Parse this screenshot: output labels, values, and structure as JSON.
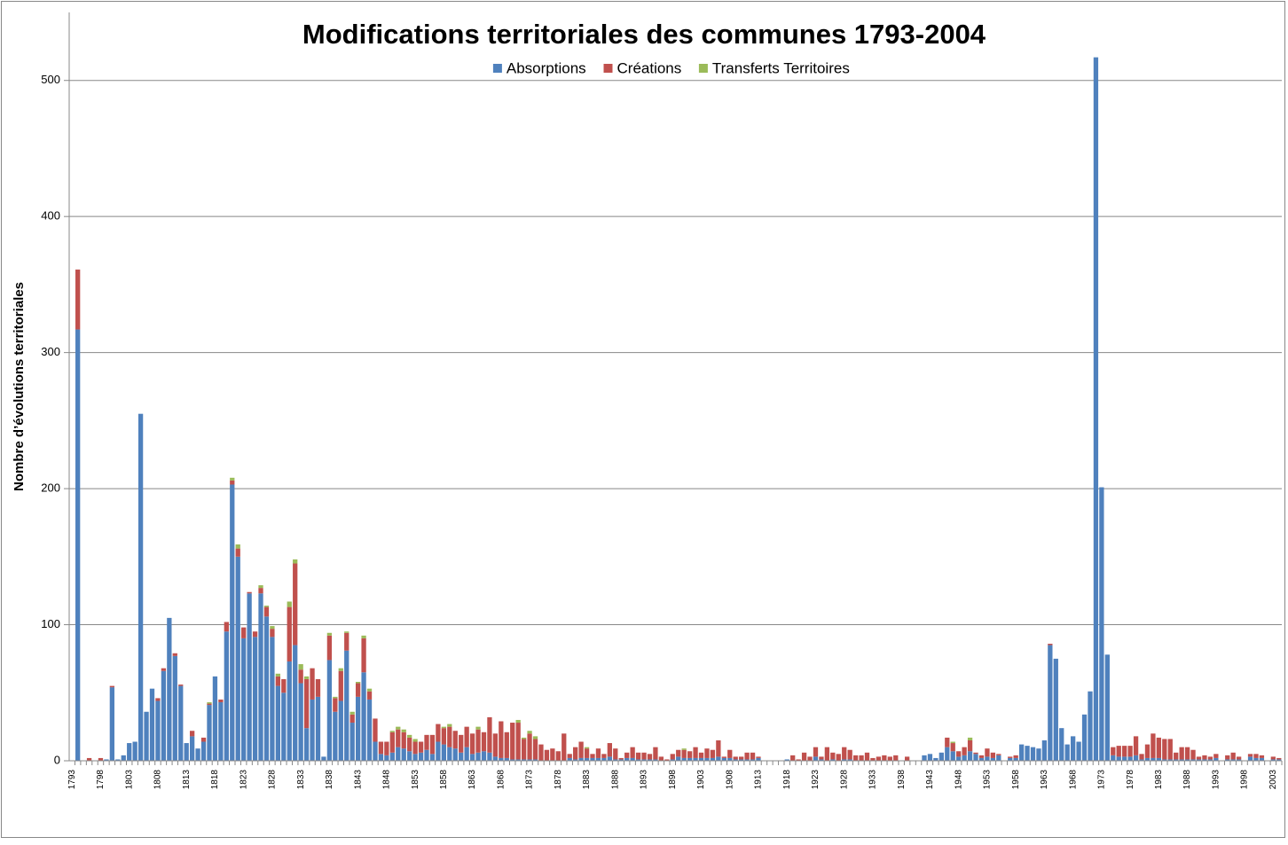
{
  "chart_data": {
    "type": "stacked_bar",
    "title": "Modifications territoriales des communes 1793-2004",
    "y_label": "Nombre d’évolutions territoriales",
    "categories": [
      "1793",
      null,
      null,
      null,
      null,
      "1798",
      null,
      null,
      null,
      null,
      "1803",
      null,
      null,
      null,
      null,
      "1808",
      null,
      null,
      null,
      null,
      "1813",
      null,
      null,
      null,
      null,
      "1818",
      null,
      null,
      null,
      null,
      "1823",
      null,
      null,
      null,
      null,
      "1828",
      null,
      null,
      null,
      null,
      "1833",
      null,
      null,
      null,
      null,
      "1838",
      null,
      null,
      null,
      null,
      "1843",
      null,
      null,
      null,
      null,
      "1848",
      null,
      null,
      null,
      null,
      "1853",
      null,
      null,
      null,
      null,
      "1858",
      null,
      null,
      null,
      null,
      "1863",
      null,
      null,
      null,
      null,
      "1868",
      null,
      null,
      null,
      null,
      "1873",
      null,
      null,
      null,
      null,
      "1878",
      null,
      null,
      null,
      null,
      "1883",
      null,
      null,
      null,
      null,
      "1888",
      null,
      null,
      null,
      null,
      "1893",
      null,
      null,
      null,
      null,
      "1898",
      null,
      null,
      null,
      null,
      "1903",
      null,
      null,
      null,
      null,
      "1908",
      null,
      null,
      null,
      null,
      "1913",
      null,
      null,
      null,
      null,
      "1918",
      null,
      null,
      null,
      null,
      "1923",
      null,
      null,
      null,
      null,
      "1928",
      null,
      null,
      null,
      null,
      "1933",
      null,
      null,
      null,
      null,
      "1938",
      null,
      null,
      null,
      null,
      "1943",
      null,
      null,
      null,
      null,
      "1948",
      null,
      null,
      null,
      null,
      "1953",
      null,
      null,
      null,
      null,
      "1958",
      null,
      null,
      null,
      null,
      "1963",
      null,
      null,
      null,
      null,
      "1968",
      null,
      null,
      null,
      null,
      "1973",
      null,
      null,
      null,
      null,
      "1978",
      null,
      null,
      null,
      null,
      "1983",
      null,
      null,
      null,
      null,
      "1988",
      null,
      null,
      null,
      null,
      "1993",
      null,
      null,
      null,
      null,
      "1998",
      null,
      null,
      null,
      null,
      "2003",
      null
    ],
    "series": [
      {
        "name": "Absorptions",
        "color": "#4f81bd",
        "values": [
          0,
          317,
          0,
          0,
          0,
          0,
          1,
          54,
          1,
          4,
          13,
          14,
          255,
          36,
          53,
          44,
          66,
          105,
          77,
          55,
          13,
          18,
          9,
          14,
          41,
          62,
          43,
          95,
          203,
          150,
          90,
          123,
          91,
          123,
          106,
          91,
          55,
          50,
          73,
          85,
          57,
          24,
          45,
          47,
          3,
          74,
          36,
          44,
          81,
          28,
          47,
          65,
          45,
          14,
          5,
          4,
          6,
          10,
          9,
          7,
          5,
          6,
          8,
          5,
          14,
          12,
          10,
          9,
          6,
          10,
          5,
          6,
          7,
          6,
          3,
          2,
          2,
          1,
          1,
          1,
          1,
          1,
          0,
          0,
          0,
          0,
          0,
          2,
          1,
          2,
          2,
          2,
          2,
          2,
          3,
          1,
          1,
          2,
          2,
          1,
          1,
          1,
          1,
          0,
          0,
          1,
          3,
          2,
          2,
          2,
          2,
          2,
          2,
          3,
          2,
          2,
          1,
          1,
          1,
          1,
          2,
          0,
          0,
          0,
          0,
          1,
          0,
          0,
          0,
          0,
          3,
          1,
          0,
          1,
          0,
          1,
          1,
          0,
          0,
          0,
          0,
          0,
          0,
          0,
          0,
          0,
          0,
          0,
          0,
          4,
          5,
          2,
          6,
          10,
          7,
          3,
          4,
          7,
          5,
          2,
          3,
          2,
          4,
          0,
          2,
          2,
          12,
          11,
          10,
          9,
          15,
          85,
          75,
          24,
          12,
          18,
          14,
          34,
          51,
          517,
          201,
          78,
          4,
          3,
          3,
          3,
          4,
          1,
          2,
          2,
          2,
          1,
          1,
          1,
          1,
          1,
          1,
          1,
          1,
          1,
          2,
          0,
          1,
          1,
          1,
          0,
          3,
          2,
          2,
          0,
          1,
          1
        ]
      },
      {
        "name": "Créations",
        "color": "#c0504d",
        "values": [
          0,
          44,
          0,
          2,
          0,
          2,
          0,
          1,
          0,
          0,
          0,
          0,
          0,
          0,
          0,
          2,
          2,
          0,
          2,
          1,
          0,
          4,
          0,
          3,
          1,
          0,
          2,
          7,
          3,
          6,
          8,
          1,
          4,
          4,
          7,
          6,
          7,
          10,
          40,
          60,
          10,
          36,
          23,
          13,
          0,
          18,
          10,
          22,
          13,
          6,
          10,
          25,
          6,
          17,
          9,
          10,
          15,
          13,
          12,
          10,
          9,
          8,
          11,
          14,
          13,
          12,
          15,
          13,
          13,
          15,
          15,
          17,
          14,
          26,
          17,
          27,
          19,
          27,
          27,
          15,
          19,
          15,
          12,
          8,
          9,
          7,
          20,
          3,
          9,
          12,
          7,
          3,
          7,
          3,
          10,
          8,
          1,
          4,
          8,
          5,
          5,
          4,
          9,
          3,
          1,
          4,
          5,
          6,
          5,
          8,
          4,
          7,
          6,
          12,
          1,
          6,
          2,
          2,
          5,
          5,
          1,
          0,
          0,
          0,
          0,
          0,
          4,
          1,
          6,
          3,
          7,
          2,
          10,
          5,
          5,
          9,
          7,
          4,
          4,
          6,
          2,
          3,
          4,
          3,
          4,
          0,
          3,
          0,
          0,
          0,
          0,
          0,
          0,
          7,
          6,
          4,
          6,
          8,
          1,
          2,
          6,
          4,
          1,
          0,
          1,
          2,
          0,
          0,
          0,
          0,
          0,
          1,
          0,
          0,
          0,
          0,
          0,
          0,
          0,
          0,
          0,
          0,
          6,
          8,
          8,
          8,
          14,
          4,
          10,
          18,
          15,
          15,
          15,
          5,
          9,
          9,
          7,
          2,
          3,
          2,
          3,
          0,
          3,
          5,
          2,
          0,
          2,
          3,
          2,
          0,
          2,
          1
        ]
      },
      {
        "name": "Transferts Territoires",
        "color": "#9bbb59",
        "values": [
          0,
          0,
          0,
          0,
          0,
          0,
          0,
          0,
          0,
          0,
          0,
          0,
          0,
          0,
          0,
          0,
          0,
          0,
          0,
          0,
          0,
          0,
          0,
          0,
          1,
          0,
          0,
          0,
          2,
          3,
          0,
          0,
          0,
          2,
          1,
          2,
          2,
          0,
          4,
          3,
          4,
          2,
          0,
          0,
          0,
          2,
          1,
          2,
          1,
          2,
          1,
          2,
          2,
          0,
          0,
          0,
          1,
          2,
          2,
          2,
          2,
          0,
          0,
          0,
          0,
          1,
          2,
          0,
          0,
          0,
          0,
          2,
          0,
          0,
          0,
          0,
          0,
          0,
          2,
          1,
          2,
          2,
          0,
          0,
          0,
          0,
          0,
          0,
          0,
          0,
          1,
          0,
          0,
          0,
          0,
          0,
          0,
          0,
          0,
          0,
          0,
          0,
          0,
          0,
          0,
          0,
          0,
          1,
          0,
          0,
          0,
          0,
          0,
          0,
          0,
          0,
          0,
          0,
          0,
          0,
          0,
          0,
          0,
          0,
          0,
          0,
          0,
          0,
          0,
          0,
          0,
          0,
          0,
          0,
          0,
          0,
          0,
          0,
          0,
          0,
          0,
          0,
          0,
          0,
          0,
          0,
          0,
          0,
          0,
          0,
          0,
          0,
          0,
          0,
          1,
          0,
          0,
          2,
          0,
          0,
          0,
          0,
          0,
          0,
          0,
          0,
          0,
          0,
          0,
          0,
          0,
          0,
          0,
          0,
          0,
          0,
          0,
          0,
          0,
          0,
          0,
          0,
          0,
          0,
          0,
          0,
          0,
          0,
          0,
          0,
          0,
          0,
          0,
          0,
          0,
          0,
          0,
          0,
          0,
          0,
          0,
          0,
          0,
          0,
          0,
          0,
          0,
          0,
          0,
          0,
          0,
          0
        ]
      }
    ],
    "ylim": [
      0,
      550
    ],
    "yticks": [
      0,
      100,
      200,
      300,
      400,
      500
    ],
    "grid": true,
    "legend": "top"
  }
}
